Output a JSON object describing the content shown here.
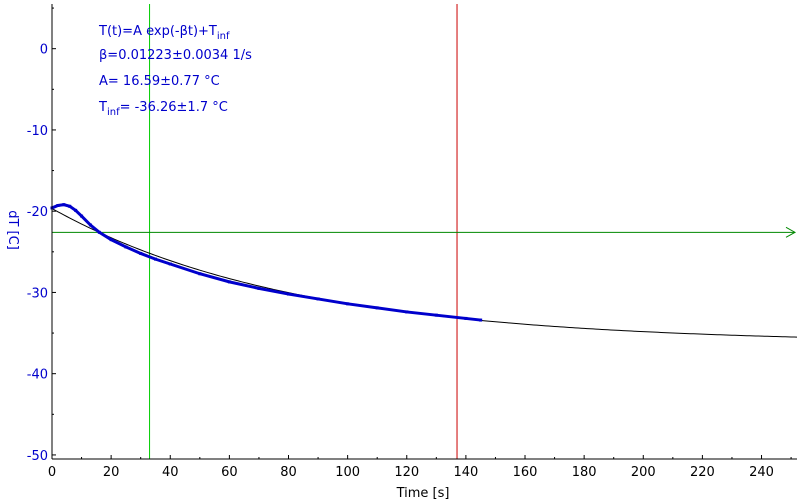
{
  "chart_data": {
    "type": "line",
    "title": "",
    "xlabel": "Time [s]",
    "ylabel": "dT [C]",
    "xlim": [
      0,
      252
    ],
    "ylim": [
      -50.5,
      5.5
    ],
    "x_ticks": [
      0,
      20,
      40,
      60,
      80,
      100,
      120,
      140,
      160,
      180,
      200,
      220,
      240
    ],
    "y_ticks": [
      0,
      -10,
      -20,
      -30,
      -40,
      -50
    ],
    "grid": false,
    "legend": "none",
    "colors": {
      "data": "#0000cc",
      "fit": "#000000",
      "left_cursor": "#00cc00",
      "right_cursor": "#cc0000",
      "horizontal_cursor": "#008800",
      "axis_text": "#0000cc"
    },
    "cursors": {
      "vertical_left_x": 33,
      "vertical_right_x": 137,
      "horizontal_y": -22.6
    },
    "annotation": {
      "formula": {
        "prefix": "T(t)=A exp(-βt)+T",
        "sub": "inf"
      },
      "beta": "β=0.01223±0.0034 1/s",
      "A": "A= 16.59±0.77 °C",
      "tinf": {
        "prefix": "T",
        "sub": "inf",
        "suffix": "= -36.26±1.7 °C"
      }
    },
    "fit_params": {
      "A": 16.59,
      "beta": 0.01223,
      "T_inf": -36.26
    },
    "series": [
      {
        "x": [
          0,
          2,
          4,
          6,
          8,
          10,
          13,
          16,
          20,
          25,
          30,
          35,
          40,
          50,
          60,
          70,
          80,
          90,
          100,
          110,
          120,
          130,
          140,
          145
        ],
        "y": [
          -19.6,
          -19.3,
          -19.2,
          -19.4,
          -19.9,
          -20.6,
          -21.7,
          -22.6,
          -23.5,
          -24.4,
          -25.2,
          -25.9,
          -26.5,
          -27.7,
          -28.7,
          -29.5,
          -30.2,
          -30.8,
          -31.4,
          -31.9,
          -32.4,
          -32.8,
          -33.2,
          -33.4
        ]
      }
    ]
  }
}
